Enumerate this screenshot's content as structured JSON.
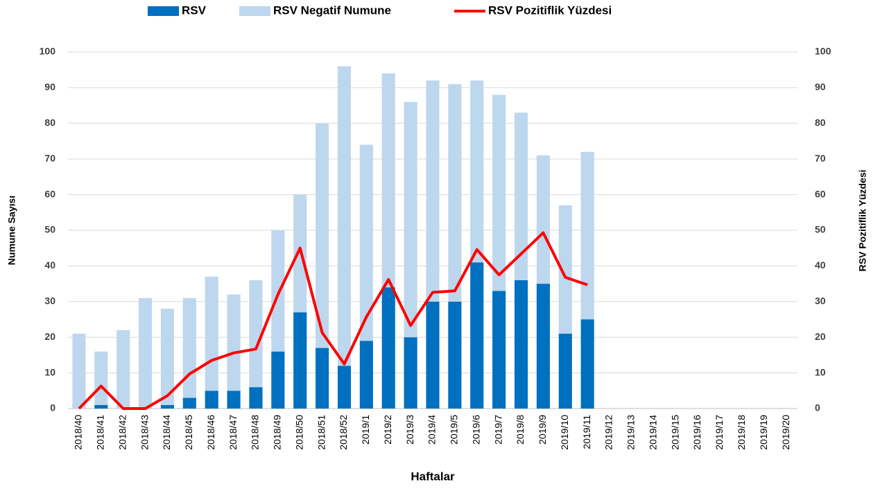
{
  "chart_data": {
    "type": "bar",
    "stacked": true,
    "x_label": "Haftalar",
    "y_label": "Numune Sayısı",
    "y2_label": "RSV Pozitiflik Yüzdesi",
    "categories": [
      "2018/40",
      "2018/41",
      "2018/42",
      "2018/43",
      "2018/44",
      "2018/45",
      "2018/46",
      "2018/47",
      "2018/48",
      "2018/49",
      "2018/50",
      "2018/51",
      "2018/52",
      "2019/1",
      "2019/2",
      "2019/3",
      "2019/4",
      "2019/5",
      "2019/6",
      "2019/7",
      "2019/8",
      "2019/9",
      "2019/10",
      "2019/11",
      "2019/12",
      "2019/13",
      "2019/14",
      "2019/15",
      "2019/16",
      "2019/17",
      "2019/18",
      "2019/19",
      "2019/20"
    ],
    "series": [
      {
        "name": "RSV",
        "type": "bar",
        "color": "#0070c0",
        "values": [
          0,
          1,
          0,
          0,
          1,
          3,
          5,
          5,
          6,
          16,
          27,
          17,
          12,
          19,
          34,
          20,
          30,
          30,
          41,
          33,
          36,
          35,
          21,
          25,
          null,
          null,
          null,
          null,
          null,
          null,
          null,
          null,
          null
        ]
      },
      {
        "name": "RSV Negatif Numune",
        "type": "bar",
        "color": "#bdd7ee",
        "values": [
          21,
          15,
          22,
          31,
          27,
          28,
          32,
          27,
          30,
          34,
          33,
          63,
          84,
          55,
          60,
          66,
          62,
          61,
          51,
          55,
          47,
          36,
          36,
          47,
          null,
          null,
          null,
          null,
          null,
          null,
          null,
          null,
          null
        ]
      },
      {
        "name": "RSV Pozitiflik Yüzdesi",
        "type": "line",
        "axis": "y2",
        "color": "#ff0000",
        "values": [
          0,
          6.3,
          0,
          0,
          3.6,
          9.7,
          13.5,
          15.6,
          16.7,
          32,
          45,
          21.3,
          12.5,
          25.7,
          36.2,
          23.3,
          32.6,
          33,
          44.6,
          37.5,
          43.4,
          49.3,
          36.8,
          34.7,
          null,
          null,
          null,
          null,
          null,
          null,
          null,
          null,
          null
        ]
      }
    ],
    "ylim": [
      0,
      100
    ],
    "yticks": [
      0,
      10,
      20,
      30,
      40,
      50,
      60,
      70,
      80,
      90,
      100
    ],
    "y2lim": [
      0,
      100
    ],
    "y2ticks": [
      0,
      10,
      20,
      30,
      40,
      50,
      60,
      70,
      80,
      90,
      100
    ],
    "grid": true,
    "legend": "top"
  }
}
